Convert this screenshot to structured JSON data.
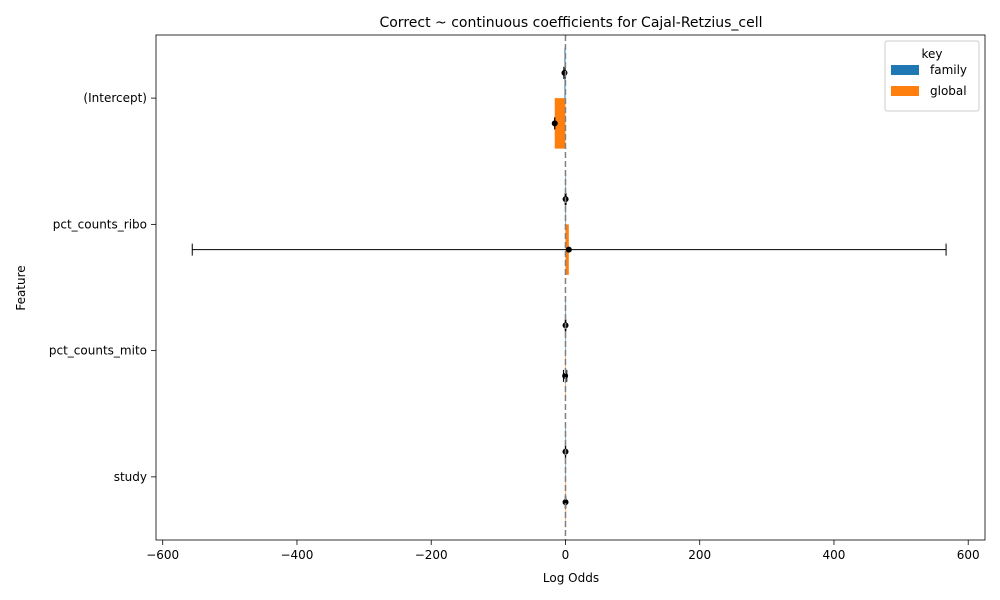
{
  "chart_data": {
    "type": "bar",
    "orientation": "horizontal",
    "title": "Correct ~ continuous coefficients for Cajal-Retzius_cell",
    "xlabel": "Log Odds",
    "ylabel": "Feature",
    "categories": [
      "(Intercept)",
      "pct_counts_ribo",
      "pct_counts_mito",
      "study"
    ],
    "xlim": [
      -610,
      625
    ],
    "xticks": [
      -600,
      -400,
      -200,
      0,
      200,
      400,
      600
    ],
    "xtick_labels": [
      "−600",
      "−400",
      "−200",
      "0",
      "200",
      "400",
      "600"
    ],
    "reference_line": 0,
    "legend": {
      "title": "key",
      "placement": "top-right"
    },
    "series": [
      {
        "name": "family",
        "color": "#1f77b4",
        "values": [
          -1.5,
          0.2,
          0.1,
          0.05
        ],
        "ci_low": [
          -2.5,
          -0.5,
          -0.4,
          -0.2
        ],
        "ci_high": [
          -0.5,
          0.9,
          0.6,
          0.3
        ]
      },
      {
        "name": "global",
        "color": "#ff7f0e",
        "values": [
          -16,
          5,
          -0.5,
          0.1
        ],
        "ci_low": [
          -16,
          -556,
          -3,
          -0.3
        ],
        "ci_high": [
          -16,
          567,
          2,
          0.5
        ]
      }
    ]
  }
}
